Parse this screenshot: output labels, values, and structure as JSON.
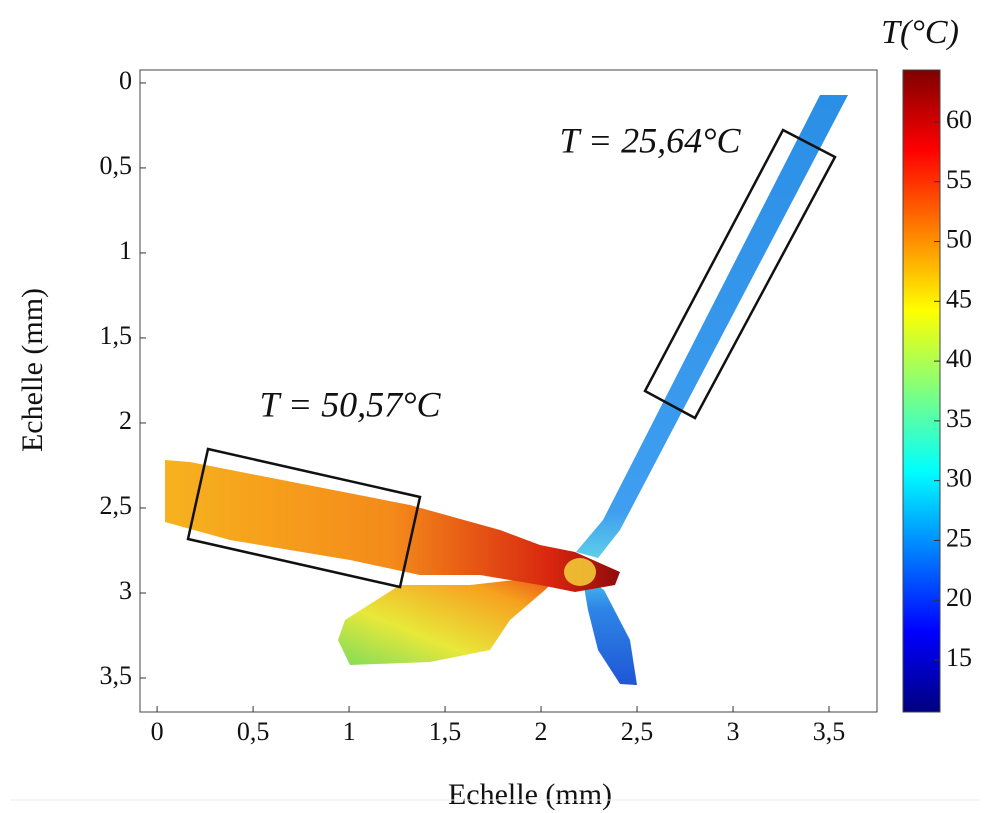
{
  "chart_data": {
    "type": "heatmap",
    "x_label": "Echelle (mm)",
    "y_label": "Echelle (mm)",
    "colorbar_label": "T(°C)",
    "annotations": [
      "T = 25,64°C",
      "T = 50,57°C"
    ],
    "xlim": [
      -0.089,
      3.75
    ],
    "xticks": [
      0,
      {
        "value": 0.5,
        "label": "0,5"
      },
      1,
      {
        "value": 1.5,
        "label": "1,5"
      },
      2,
      {
        "value": 2.5,
        "label": "2,5"
      },
      3,
      {
        "value": 3.5,
        "label": "3,5"
      }
    ],
    "ylim": [
      -0.076,
      3.7
    ],
    "y_inverted": true,
    "yticks": [
      0,
      {
        "value": 0.5,
        "label": "0,5"
      },
      1,
      {
        "value": 1.5,
        "label": "1,5"
      },
      2,
      {
        "value": 2.5,
        "label": "2,5"
      },
      3,
      {
        "value": 3.5,
        "label": "3,5"
      }
    ],
    "colorbar_lim": [
      10.65,
      64.35
    ],
    "colorbar_ticks": [
      15,
      20,
      25,
      30,
      35,
      40,
      45,
      50,
      55,
      60
    ],
    "colormap": "jet"
  }
}
